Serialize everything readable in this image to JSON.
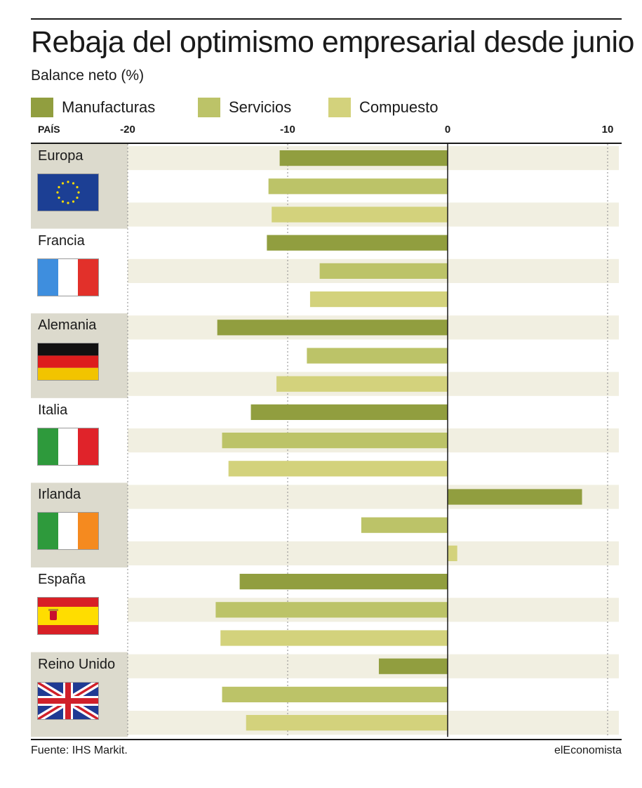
{
  "title": "Rebaja del optimismo empresarial desde junio",
  "subtitle": "Balance neto (%)",
  "pais_label": "PAÍS",
  "source": "Fuente: IHS Markit.",
  "brand": "elEconomista",
  "colors": {
    "manufacturas": "#919e3f",
    "servicios": "#bcc368",
    "compuesto": "#d3d27c",
    "row_band": "#f1efe1",
    "panel_band": "#dcdacd",
    "zero_line": "#1a1a1a"
  },
  "chart_data": {
    "type": "bar",
    "orientation": "horizontal",
    "title": "Rebaja del optimismo empresarial desde junio",
    "subtitle": "Balance neto (%)",
    "xlim": [
      -20,
      10
    ],
    "x_ticks": [
      "-20",
      "-10",
      "0",
      "10"
    ],
    "grid": true,
    "legend_position": "top",
    "categories": [
      "Europa",
      "Francia",
      "Alemania",
      "Italia",
      "Irlanda",
      "España",
      "Reino Unido"
    ],
    "flags": [
      "eu-flag-icon",
      "france-flag-icon",
      "germany-flag-icon",
      "italy-flag-icon",
      "ireland-flag-icon",
      "spain-flag-icon",
      "uk-flag-icon"
    ],
    "series": [
      {
        "name": "Manufacturas",
        "values": [
          -10.5,
          -11.3,
          -14.4,
          -12.3,
          8.4,
          -13.0,
          -4.3
        ]
      },
      {
        "name": "Servicios",
        "values": [
          -11.2,
          -8.0,
          -8.8,
          -14.1,
          -5.4,
          -14.5,
          -14.1
        ]
      },
      {
        "name": "Compuesto",
        "values": [
          -11.0,
          -8.6,
          -10.7,
          -13.7,
          0.6,
          -14.2,
          -12.6
        ]
      }
    ]
  }
}
